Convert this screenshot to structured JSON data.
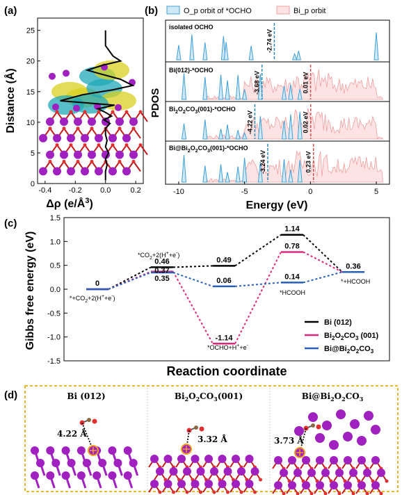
{
  "panel_labels": {
    "a": "(a)",
    "b": "(b)",
    "c": "(c)",
    "d": "(d)"
  },
  "colors": {
    "bi_atom": "#a020c0",
    "bond": "#c01818",
    "oxygen": "#e03030",
    "carbon": "#8a6a40",
    "blue": "#2a7ab8",
    "pink": "#e0287a",
    "pdos_red": "#f0a0a0",
    "pdos_blue": "#3fa0d8",
    "dash_orange": "#e8b830",
    "iso_yellow": "#d8d020",
    "iso_cyan": "#20a8b8"
  },
  "chart_data": [
    {
      "panel": "(a)",
      "type": "line",
      "xlabel": "Δρ (e/Å³)",
      "ylabel": "Distance (Å)",
      "xticks": [
        "-0.4",
        "-0.2",
        "0.0",
        "0.2"
      ],
      "yticks": [
        "0",
        "5",
        "10",
        "15",
        "20",
        "25"
      ],
      "xlim": [
        -0.45,
        0.25
      ],
      "ylim": [
        0,
        27
      ],
      "series": [
        {
          "x": [
            0.0,
            0.0,
            0.01,
            0.0,
            0.02,
            0.0,
            0.01,
            0.0,
            0.0,
            0.03,
            -0.01,
            0.04,
            0.0,
            -0.05,
            0.06,
            -0.3,
            -0.15,
            0.05,
            0.18,
            0.1,
            -0.05,
            -0.12,
            -0.02,
            0.1,
            0.05,
            0.0,
            0.0
          ],
          "y": [
            0.5,
            2.0,
            3.0,
            4.0,
            5.0,
            6.0,
            7.0,
            8.0,
            9.0,
            9.8,
            10.4,
            11.0,
            11.6,
            12.2,
            12.8,
            13.5,
            14.5,
            15.3,
            16.0,
            17.0,
            18.0,
            18.5,
            19.3,
            20.0,
            20.8,
            22.5,
            25.0
          ]
        }
      ]
    },
    {
      "panel": "(b)",
      "type": "area",
      "xlabel": "Energy (eV)",
      "ylabel": "PDOS",
      "xticks": [
        "-10",
        "-5",
        "0",
        "5"
      ],
      "xlim": [
        -11,
        6
      ],
      "legend": [
        "O_p  orbit of *OCHO",
        "Bi_p orbit"
      ],
      "subplots": [
        {
          "label": "isolated OCHO",
          "markers": [
            {
              "x": -2.74,
              "text": "-2.74 eV"
            }
          ]
        },
        {
          "label": "Bi(012)-*OCHO",
          "markers": [
            {
              "x": -3.68,
              "text": "-3.68 eV"
            },
            {
              "x": 0.01,
              "text": "0.01 eV"
            }
          ]
        },
        {
          "label": "Bi2O2CO3(001)-*OCHO",
          "markers": [
            {
              "x": -4.22,
              "text": "-4.22 eV"
            },
            {
              "x": 0.02,
              "text": "0.02 eV"
            }
          ]
        },
        {
          "label": "Bi@Bi2O2CO3(001)-*OCHO",
          "markers": [
            {
              "x": -3.24,
              "text": "-3.24 eV"
            },
            {
              "x": 0.23,
              "text": "0.23 eV"
            }
          ]
        }
      ]
    },
    {
      "panel": "(c)",
      "type": "line",
      "xlabel": "Reaction coordinate",
      "ylabel": "Gibbs free energy (eV)",
      "yticks": [
        "-1.5",
        "-1.0",
        "-0.5",
        "0.0",
        "0.5",
        "1.0",
        "1.5"
      ],
      "ylim": [
        -1.5,
        1.5
      ],
      "legend_position": "bottom-right",
      "states": [
        "*+CO2+2(H+e)",
        "*CO2+2(H+e)",
        "",
        "*OCHO+H+e",
        "*HCOOH",
        "*+HCOOH"
      ],
      "series": [
        {
          "name": "Bi (012)",
          "color": "#000000",
          "values": [
            0,
            0.46,
            0.49,
            0.49,
            1.14,
            0.36
          ],
          "labels": [
            "0",
            "0.46",
            "0.49",
            "",
            "1.14",
            "0.36"
          ]
        },
        {
          "name": "Bi2O2CO3 (001)",
          "color": "#e0287a",
          "values": [
            0,
            0.37,
            -1.14,
            -1.14,
            0.78,
            0.36
          ],
          "labels": [
            "",
            "0.37",
            "",
            "-1.14",
            "0.78",
            ""
          ]
        },
        {
          "name": "Bi@Bi2O2CO3",
          "color": "#2a5fb8",
          "values": [
            0,
            0.35,
            0.06,
            0.06,
            0.14,
            0.36
          ],
          "labels": [
            "",
            "0.35",
            "0.06",
            "",
            "0.14",
            ""
          ]
        }
      ]
    }
  ],
  "texts": {
    "a_xlabel": "Δρ (e/Å",
    "a_xlabel_sup": "3",
    "a_xlabel_end": ")",
    "a_ylabel": "Distance (Å)",
    "b_ylabel": "PDOS",
    "b_xlabel": "Energy (eV)",
    "b_legend_o": "O_p  orbit of *OCHO",
    "b_legend_bi": "Bi_p orbit",
    "b_sub1": "isolated OCHO",
    "b_sub2": "Bi(012)-*OCHO",
    "b_sub3_pre": "Bi",
    "b_sub3_mid": "O",
    "b_sub3_mid2": "CO",
    "b_sub3_end": "(001)-*OCHO",
    "b_sub4_pre": "Bi@Bi",
    "b_sub4_mid": "O",
    "b_sub4_mid2": "CO",
    "b_sub4_end": "(001)-*OCHO",
    "c_ylabel": "Gibbs free energy (eV)",
    "c_xlabel": "Reaction coordinate",
    "c_state0": "*+CO",
    "c_state0b": "+2(H",
    "c_state0c": "+e",
    "c_state0d": ")",
    "c_state1": "*CO",
    "c_state1b": "+2(H",
    "c_state1c": "+e",
    "c_state1d": ")",
    "c_state3": "*OCHO+H",
    "c_state3b": "+e",
    "c_state4": "*HCOOH",
    "c_state5": "*+HCOOH",
    "c_leg1": "Bi (012)",
    "c_leg2_a": "Bi",
    "c_leg2_b": "O",
    "c_leg2_c": "CO",
    "c_leg2_d": " (001)",
    "c_leg3_a": "Bi@Bi",
    "c_leg3_b": "O",
    "c_leg3_c": "CO",
    "d_title1": "Bi (012)",
    "d_title2_a": "Bi",
    "d_title2_b": "O",
    "d_title2_c": "CO",
    "d_title2_d": "(001)",
    "d_title3_a": "Bi@Bi",
    "d_title3_b": "O",
    "d_title3_c": "CO",
    "d_dist1": "4.22 Å",
    "d_dist2": "3.32 Å",
    "d_dist3": "3.73 Å",
    "sub2": "2",
    "sub3": "3",
    "sup_plus": "+",
    "sup_minus": "-"
  }
}
